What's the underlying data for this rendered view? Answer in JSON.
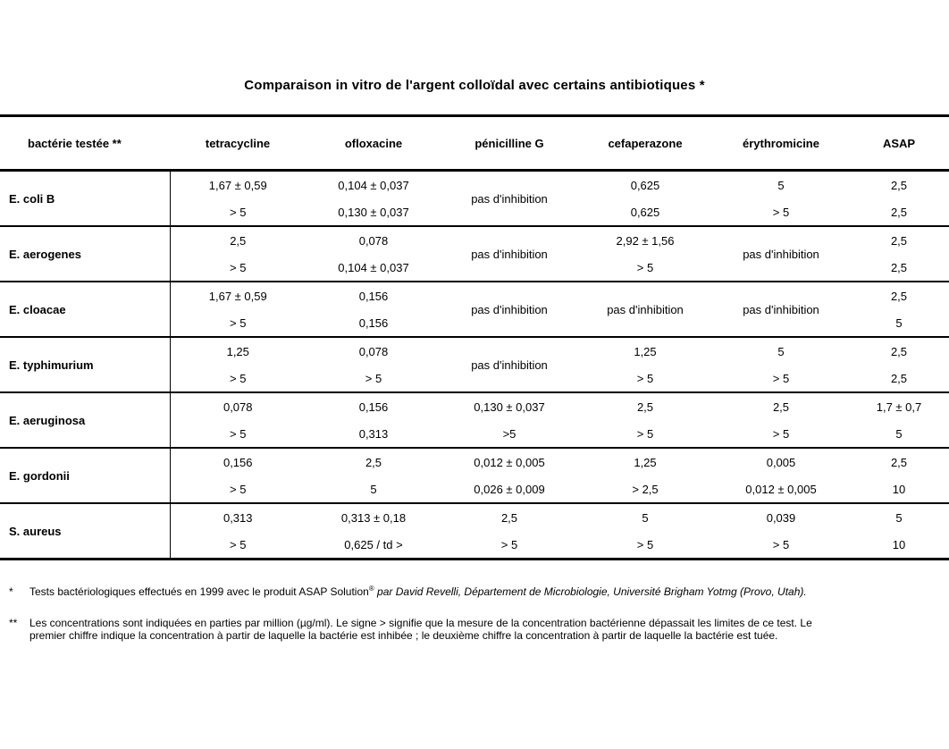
{
  "title": "Comparaison in vitro de l'argent colloïdal avec certains antibiotiques *",
  "table": {
    "columns": [
      "bactérie testée **",
      "tetracycline",
      "ofloxacine",
      "pénicilline G",
      "cefaperazone",
      "érythromicine",
      "ASAP"
    ],
    "no_inhibition_label": "pas d'inhibition",
    "rows": [
      {
        "bacteria": "E. coli B",
        "cells": [
          {
            "top": "1,67 ± 0,59",
            "bottom": "> 5"
          },
          {
            "top": "0,104 ± 0,037",
            "bottom": "0,130 ± 0,037"
          },
          {
            "span": "pas d'inhibition"
          },
          {
            "top": "0,625",
            "bottom": "0,625"
          },
          {
            "top": "5",
            "bottom": "> 5"
          },
          {
            "top": "2,5",
            "bottom": "2,5"
          }
        ]
      },
      {
        "bacteria": "E. aerogenes",
        "cells": [
          {
            "top": "2,5",
            "bottom": "> 5"
          },
          {
            "top": "0,078",
            "bottom": "0,104 ± 0,037"
          },
          {
            "span": "pas d'inhibition"
          },
          {
            "top": "2,92 ± 1,56",
            "bottom": "> 5"
          },
          {
            "span": "pas d'inhibition"
          },
          {
            "top": "2,5",
            "bottom": "2,5"
          }
        ]
      },
      {
        "bacteria": "E. cloacae",
        "cells": [
          {
            "top": "1,67 ± 0,59",
            "bottom": "> 5"
          },
          {
            "top": "0,156",
            "bottom": "0,156"
          },
          {
            "span": "pas d'inhibition"
          },
          {
            "span": "pas d'inhibition"
          },
          {
            "span": "pas d'inhibition"
          },
          {
            "top": "2,5",
            "bottom": "5"
          }
        ]
      },
      {
        "bacteria": "E. typhimurium",
        "cells": [
          {
            "top": "1,25",
            "bottom": "> 5"
          },
          {
            "top": "0,078",
            "bottom": "> 5"
          },
          {
            "span": "pas d'inhibition"
          },
          {
            "top": "1,25",
            "bottom": "> 5"
          },
          {
            "top": "5",
            "bottom": "> 5"
          },
          {
            "top": "2,5",
            "bottom": "2,5"
          }
        ]
      },
      {
        "bacteria": "E. aeruginosa",
        "cells": [
          {
            "top": "0,078",
            "bottom": "> 5"
          },
          {
            "top": "0,156",
            "bottom": "0,313"
          },
          {
            "top": "0,130 ± 0,037",
            "bottom": ">5"
          },
          {
            "top": "2,5",
            "bottom": "> 5"
          },
          {
            "top": "2,5",
            "bottom": "> 5"
          },
          {
            "top": "1,7 ± 0,7",
            "bottom": "5"
          }
        ]
      },
      {
        "bacteria": "E. gordonii",
        "cells": [
          {
            "top": "0,156",
            "bottom": "> 5"
          },
          {
            "top": "2,5",
            "bottom": "5"
          },
          {
            "top": "0,012 ± 0,005",
            "bottom": "0,026 ± 0,009"
          },
          {
            "top": "1,25",
            "bottom": "> 2,5"
          },
          {
            "top": "0,005",
            "bottom": "0,012 ± 0,005"
          },
          {
            "top": "2,5",
            "bottom": "10"
          }
        ]
      },
      {
        "bacteria": "S. aureus",
        "cells": [
          {
            "top": "0,313",
            "bottom": "> 5"
          },
          {
            "top": "0,313 ± 0,18",
            "bottom": "0,625 / td >"
          },
          {
            "top": "2,5",
            "bottom": "> 5"
          },
          {
            "top": "5",
            "bottom": "> 5"
          },
          {
            "top": "0,039",
            "bottom": "> 5"
          },
          {
            "top": "5",
            "bottom": "10"
          }
        ]
      }
    ]
  },
  "footnotes": [
    {
      "marker": "*",
      "parts": [
        {
          "text": "Tests bactériologiques effectués en 1999 avec le produit ASAP Solution"
        },
        {
          "sup": "®"
        },
        {
          "italic": " par David Revelli, Département de Microbiologie, Université Brigham Yotmg (Provo, Utah)."
        }
      ]
    },
    {
      "marker": "**",
      "parts": [
        {
          "text": "Les concentrations sont indiquées en parties par million (µg/ml). Le signe > signifie que la mesure de la concentration bactérienne dépassait les limites de ce test. Le"
        },
        {
          "break": true
        },
        {
          "text": "premier chiffre indique la concentration à partir de laquelle la bactérie est inhibée ; le deuxième chiffre la concentration à partir de laquelle la bactérie est tuée."
        }
      ]
    }
  ]
}
